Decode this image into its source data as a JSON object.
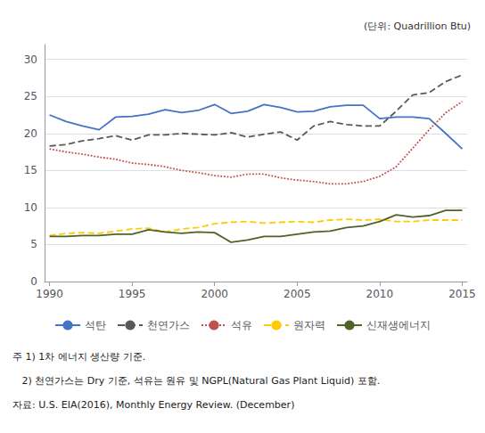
{
  "chart_data": {
    "type": "line",
    "x": [
      1990,
      1991,
      1992,
      1993,
      1994,
      1995,
      1996,
      1997,
      1998,
      1999,
      2000,
      2001,
      2002,
      2003,
      2004,
      2005,
      2006,
      2007,
      2008,
      2009,
      2010,
      2011,
      2012,
      2013,
      2014,
      2015
    ],
    "series": [
      {
        "name": "석탄",
        "color": "#4472C4",
        "line_style": "solid",
        "values": [
          22.5,
          21.6,
          21.0,
          20.5,
          22.2,
          22.3,
          22.6,
          23.2,
          22.8,
          23.1,
          23.9,
          22.7,
          23.0,
          23.9,
          23.5,
          22.9,
          23.0,
          23.6,
          23.8,
          23.8,
          22.0,
          22.2,
          22.2,
          22.0,
          20.0,
          17.9
        ]
      },
      {
        "name": "천연가스",
        "color": "#595959",
        "line_style": "dashed",
        "values": [
          18.3,
          18.5,
          19.0,
          19.3,
          19.7,
          19.1,
          19.8,
          19.8,
          20.0,
          19.9,
          19.8,
          20.1,
          19.5,
          19.9,
          20.2,
          19.1,
          21.0,
          21.6,
          21.2,
          21.0,
          21.0,
          23.0,
          25.2,
          25.5,
          27.0,
          27.9
        ]
      },
      {
        "name": "석유",
        "color": "#C0504D",
        "line_style": "dotted",
        "values": [
          17.9,
          17.5,
          17.2,
          16.8,
          16.5,
          16.0,
          15.8,
          15.5,
          15.0,
          14.7,
          14.3,
          14.1,
          14.5,
          14.5,
          14.0,
          13.7,
          13.5,
          13.2,
          13.2,
          13.5,
          14.2,
          15.5,
          18.0,
          20.5,
          22.8,
          24.3
        ]
      },
      {
        "name": "원자력",
        "color": "#FFCC00",
        "line_style": "dashed",
        "values": [
          6.2,
          6.5,
          6.6,
          6.5,
          6.8,
          7.1,
          7.2,
          6.7,
          7.1,
          7.3,
          7.8,
          8.0,
          8.1,
          7.9,
          8.0,
          8.1,
          8.0,
          8.3,
          8.4,
          8.3,
          8.4,
          8.1,
          8.1,
          8.3,
          8.3,
          8.3
        ]
      },
      {
        "name": "신재생에너지",
        "color": "#4F6228",
        "line_style": "solid",
        "values": [
          6.1,
          6.1,
          6.2,
          6.2,
          6.4,
          6.4,
          7.0,
          6.7,
          6.5,
          6.7,
          6.6,
          5.3,
          5.6,
          6.1,
          6.1,
          6.4,
          6.7,
          6.8,
          7.3,
          7.5,
          8.1,
          9.0,
          8.7,
          8.9,
          9.6,
          9.6
        ]
      }
    ],
    "xlim": [
      1989.7,
      2015.3
    ],
    "xticks": [
      1990,
      1995,
      2000,
      2005,
      2010,
      2015
    ],
    "ylim": [
      0,
      32
    ],
    "yticks": [
      0,
      5,
      10,
      15,
      20,
      25,
      30
    ],
    "grid": true,
    "legend": "bottom",
    "annotations": [
      "(단위: Quadrillion Btu)",
      "주 1) 1차 에너지 생산량 기준.",
      "   2) 천연가스는 Dry 기준, 석유는 원유 및 NGPL(Natural Gas Plant Liquid) 포함.",
      "자료: U.S. EIA(2016), Monthly Energy Review. (December)"
    ]
  }
}
